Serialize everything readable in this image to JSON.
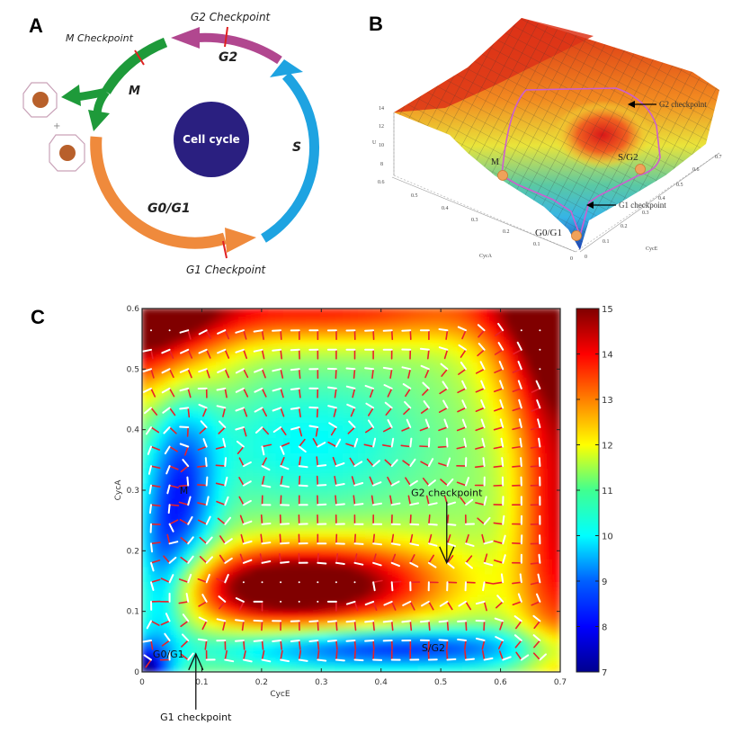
{
  "panels": {
    "A": {
      "letter": "A",
      "center_label": "Cell cycle",
      "phases": [
        {
          "label": "G0/G1",
          "color": "#ef8a3c"
        },
        {
          "label": "S",
          "color": "#1ea3e1"
        },
        {
          "label": "G2",
          "color": "#b1478f"
        },
        {
          "label": "M",
          "color": "#1e9a3a"
        }
      ],
      "checkpoints": [
        "G1 Checkpoint",
        "G2 Checkpoint",
        "M Checkpoint"
      ],
      "plus_sign": "+",
      "center_color": "#2a1f80",
      "cell_nucleus_color": "#b8602b"
    },
    "B": {
      "letter": "B",
      "zlabel": "U",
      "z_ticks": [
        "8",
        "10",
        "12",
        "14"
      ],
      "xlabel": "CycA",
      "x_ticks": [
        "0",
        "0.1",
        "0.2",
        "0.3",
        "0.4",
        "0.5",
        "0.6"
      ],
      "ylabel": "CycE",
      "y_ticks": [
        "0",
        "0.1",
        "0.2",
        "0.3",
        "0.4",
        "0.5",
        "0.6",
        "0.7"
      ],
      "state_labels": [
        "M",
        "S/G2",
        "G0/G1"
      ],
      "annotations": [
        "G2 checkpoint",
        "G1 checkpoint"
      ],
      "path_color": "#cc5fcf",
      "node_color": "#f0a25a"
    },
    "C": {
      "letter": "C"
    }
  },
  "chart_data": {
    "type": "heatmap",
    "title": "",
    "xlabel": "CycE",
    "ylabel": "CycA",
    "xlim": [
      0,
      0.7
    ],
    "ylim": [
      0,
      0.6
    ],
    "x_ticks": [
      "0",
      "0.1",
      "0.2",
      "0.3",
      "0.4",
      "0.5",
      "0.6",
      "0.7"
    ],
    "y_ticks": [
      "0",
      "0.1",
      "0.2",
      "0.3",
      "0.4",
      "0.5",
      "0.6"
    ],
    "colorbar": {
      "range": [
        7,
        15
      ],
      "ticks": [
        "7",
        "8",
        "9",
        "10",
        "11",
        "12",
        "13",
        "14",
        "15"
      ],
      "colormap": "jet"
    },
    "annotations": [
      {
        "text": "M",
        "x": 0.07,
        "y": 0.3
      },
      {
        "text": "G0/G1",
        "x": 0.03,
        "y": 0.03
      },
      {
        "text": "S/G2",
        "x": 0.48,
        "y": 0.04
      },
      {
        "text": "G2 checkpoint",
        "x": 0.51,
        "y": 0.29,
        "arrow_to": [
          0.51,
          0.18
        ]
      },
      {
        "text": "G1 checkpoint",
        "x": 0.09,
        "y": -0.08,
        "arrow_to": [
          0.09,
          0.03
        ]
      }
    ],
    "minima": [
      {
        "name": "G0/G1",
        "x": 0.01,
        "y": 0.01
      },
      {
        "name": "M",
        "x": 0.07,
        "y": 0.3
      },
      {
        "name": "S/G2",
        "x": 0.5,
        "y": 0.04
      }
    ],
    "maxima": [
      {
        "x": 0.2,
        "y": 0.13,
        "value": 15
      },
      {
        "x": 0.0,
        "y": 0.6,
        "value": 15
      },
      {
        "x": 0.7,
        "y": 0.6,
        "value": 15
      }
    ],
    "vector_fields": [
      {
        "name": "gradient",
        "color": "#e8202a"
      },
      {
        "name": "flux",
        "color": "#ffffff"
      }
    ]
  }
}
